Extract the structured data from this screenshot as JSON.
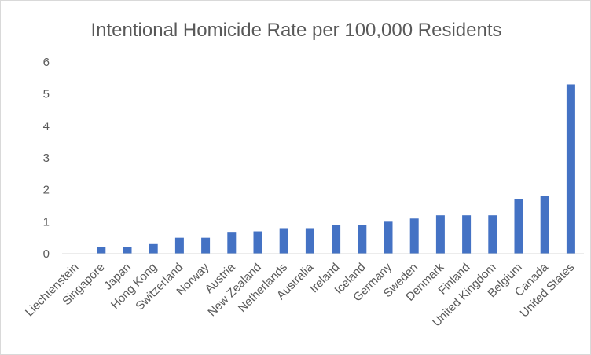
{
  "chart_data": {
    "type": "bar",
    "title": "Intentional Homicide Rate per 100,000 Residents",
    "xlabel": "",
    "ylabel": "",
    "ylim": [
      0,
      6
    ],
    "yticks": [
      0,
      1,
      2,
      3,
      4,
      5,
      6
    ],
    "grid": false,
    "legend": "none",
    "bar_color": "#4472c4",
    "categories": [
      "Liechtenstein",
      "Singapore",
      "Japan",
      "Hong Kong",
      "Switzerland",
      "Norway",
      "Austria",
      "New Zealand",
      "Netherlands",
      "Australia",
      "Ireland",
      "Iceland",
      "Germany",
      "Sweden",
      "Denmark",
      "Finland",
      "United Kingdom",
      "Belgium",
      "Canada",
      "United States"
    ],
    "values": [
      0.0,
      0.2,
      0.2,
      0.3,
      0.5,
      0.5,
      0.66,
      0.7,
      0.8,
      0.8,
      0.9,
      0.9,
      1.0,
      1.1,
      1.2,
      1.2,
      1.2,
      1.7,
      1.8,
      5.3
    ]
  }
}
